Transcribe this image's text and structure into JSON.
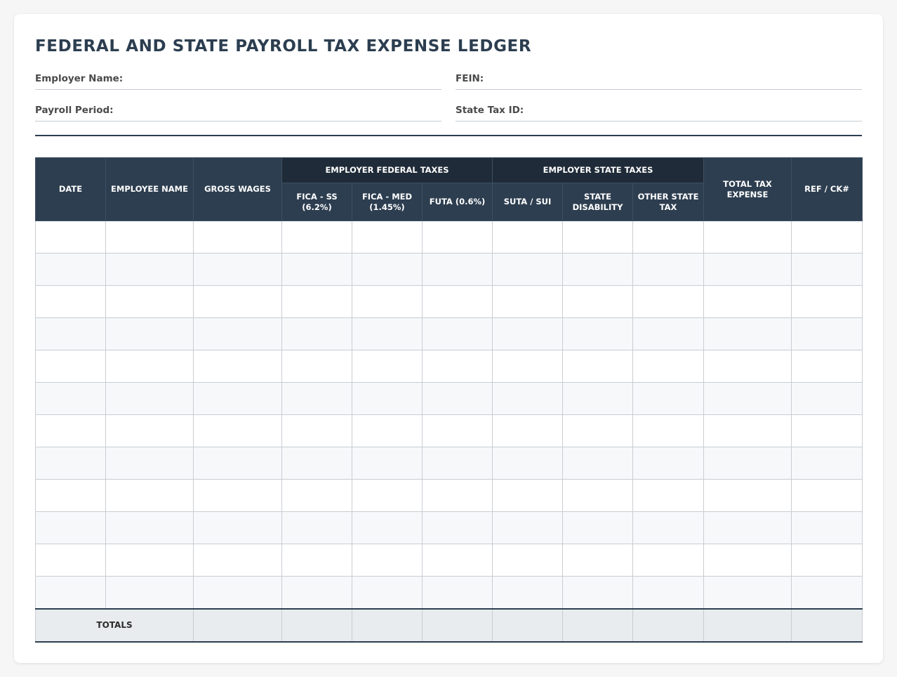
{
  "title": "FEDERAL AND STATE PAYROLL TAX EXPENSE LEDGER",
  "fields": {
    "employer_name": {
      "label": "Employer Name:",
      "value": ""
    },
    "fein": {
      "label": "FEIN:",
      "value": ""
    },
    "payroll_period": {
      "label": "Payroll Period:",
      "value": ""
    },
    "state_tax_id": {
      "label": "State Tax ID:",
      "value": ""
    }
  },
  "table": {
    "columns": {
      "date": "DATE",
      "employee_name": "EMPLOYEE NAME",
      "gross_wages": "GROSS WAGES",
      "federal_group": "EMPLOYER FEDERAL TAXES",
      "fica_ss": "FICA - SS (6.2%)",
      "fica_med": "FICA - MED (1.45%)",
      "futa": "FUTA (0.6%)",
      "state_group": "EMPLOYER STATE TAXES",
      "suta_sui": "SUTA / SUI",
      "state_disability": "STATE DISABILITY",
      "other_state_tax": "OTHER STATE TAX",
      "total_tax_expense": "TOTAL TAX EXPENSE",
      "ref_ck": "REF / CK#"
    },
    "row_count": 12,
    "totals_label": "TOTALS"
  }
}
